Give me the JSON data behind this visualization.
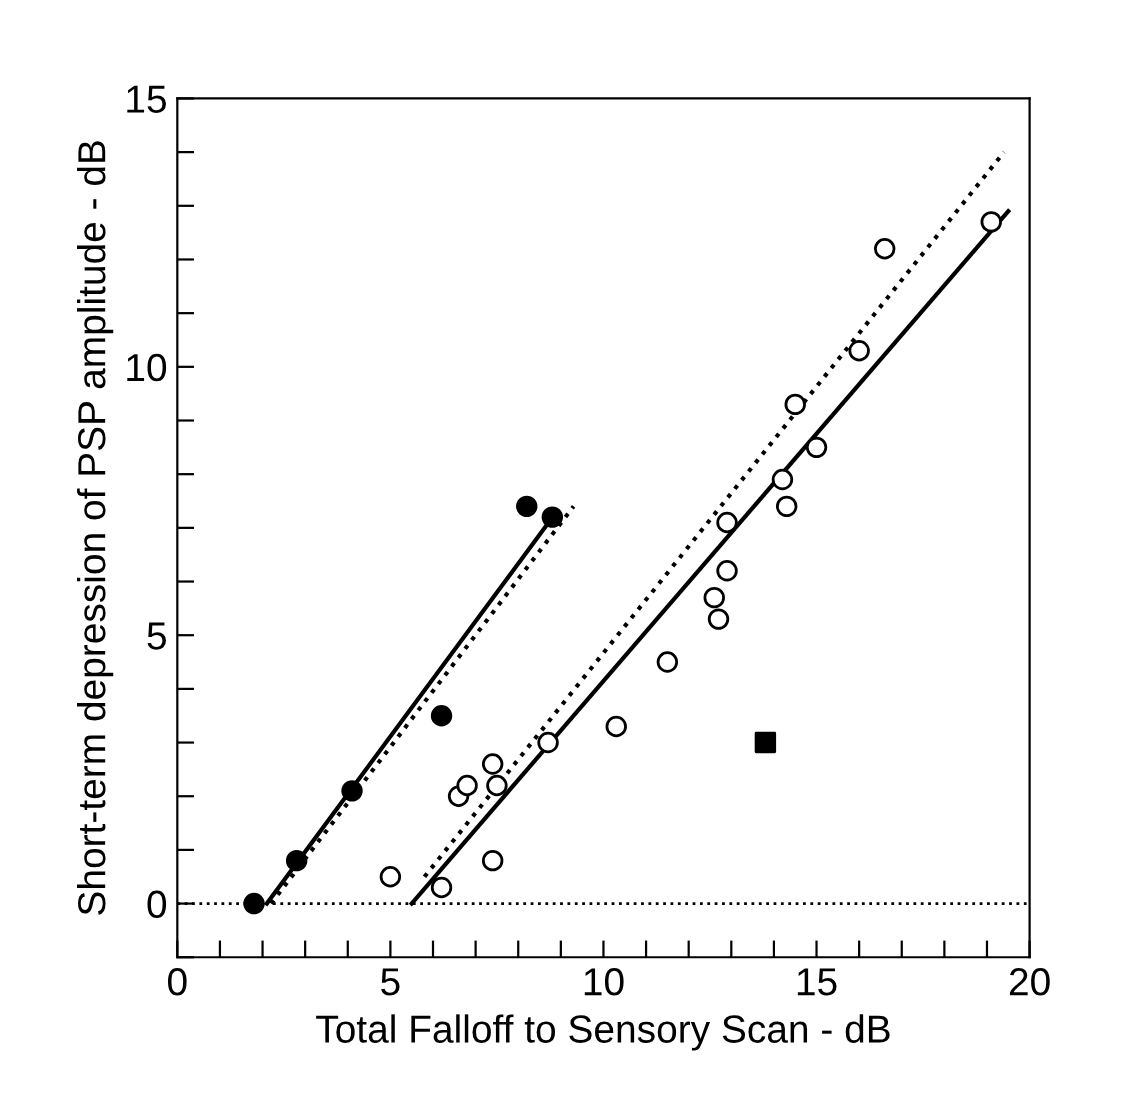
{
  "chart_data": {
    "type": "scatter",
    "xlabel": "Total Falloff to Sensory Scan - dB",
    "ylabel": "Short-term depression of PSP amplitude - dB",
    "xlim": [
      0,
      20
    ],
    "ylim": [
      -1,
      15
    ],
    "xticks": [
      0,
      {
        "value": 1,
        "label": null
      },
      {
        "value": 2,
        "label": null
      },
      {
        "value": 3,
        "label": null
      },
      {
        "value": 4,
        "label": null
      },
      5,
      {
        "value": 6,
        "label": null
      },
      {
        "value": 7,
        "label": null
      },
      {
        "value": 8,
        "label": null
      },
      {
        "value": 9,
        "label": null
      },
      10,
      {
        "value": 11,
        "label": null
      },
      {
        "value": 12,
        "label": null
      },
      {
        "value": 13,
        "label": null
      },
      {
        "value": 14,
        "label": null
      },
      15,
      {
        "value": 16,
        "label": null
      },
      {
        "value": 17,
        "label": null
      },
      {
        "value": 18,
        "label": null
      },
      {
        "value": 19,
        "label": null
      },
      20
    ],
    "yticks": [
      {
        "value": -1,
        "label": null
      },
      0,
      {
        "value": 1,
        "label": null
      },
      {
        "value": 2,
        "label": null
      },
      {
        "value": 3,
        "label": null
      },
      {
        "value": 4,
        "label": null
      },
      5,
      {
        "value": 6,
        "label": null
      },
      {
        "value": 7,
        "label": null
      },
      {
        "value": 8,
        "label": null
      },
      {
        "value": 9,
        "label": null
      },
      10,
      {
        "value": 11,
        "label": null
      },
      {
        "value": 12,
        "label": null
      },
      {
        "value": 13,
        "label": null
      },
      {
        "value": 14,
        "label": null
      },
      15
    ],
    "grid": false,
    "ref_lines": [
      {
        "axis": "y",
        "value": 0,
        "color": "#000000",
        "line_style": "dotted"
      }
    ],
    "series": [
      {
        "marker": "circle",
        "color": "#000000",
        "x": [
          1.8,
          2.8,
          4.1,
          6.2,
          8.2,
          8.8
        ],
        "values": [
          0,
          0.8,
          2.1,
          3.5,
          7.4,
          7.2
        ]
      },
      {
        "marker": "circle",
        "color": "#ffffff",
        "x": [
          5.0,
          6.2,
          6.6,
          6.8,
          7.4,
          7.5,
          7.4,
          8.7,
          10.3,
          11.5,
          12.6,
          12.7,
          12.9,
          12.9,
          14.2,
          14.3,
          14.5,
          15.0,
          16.0,
          16.6,
          19.1
        ],
        "values": [
          0.5,
          0.3,
          2.0,
          2.2,
          2.6,
          2.2,
          0.8,
          3.0,
          3.3,
          4.5,
          5.7,
          5.3,
          7.1,
          6.2,
          7.9,
          7.4,
          9.3,
          8.5,
          10.3,
          12.2,
          12.7
        ]
      },
      {
        "marker": "square",
        "color": "#000000",
        "x": [
          13.8
        ],
        "values": [
          3.0
        ]
      },
      {
        "type": "line",
        "line_style": "solid",
        "color": "#000000",
        "x": [
          2.1,
          8.9
        ],
        "values": [
          0,
          7.3
        ]
      },
      {
        "type": "line",
        "line_style": "dotted",
        "color": "#000000",
        "x": [
          2.2,
          9.3
        ],
        "values": [
          0,
          7.4
        ]
      },
      {
        "type": "line",
        "line_style": "solid",
        "color": "#000000",
        "x": [
          5.5,
          19.5
        ],
        "values": [
          0,
          12.9
        ]
      },
      {
        "type": "line",
        "line_style": "dotted",
        "color": "#000000",
        "x": [
          5.8,
          19.4
        ],
        "values": [
          0.5,
          14.0
        ]
      }
    ]
  }
}
